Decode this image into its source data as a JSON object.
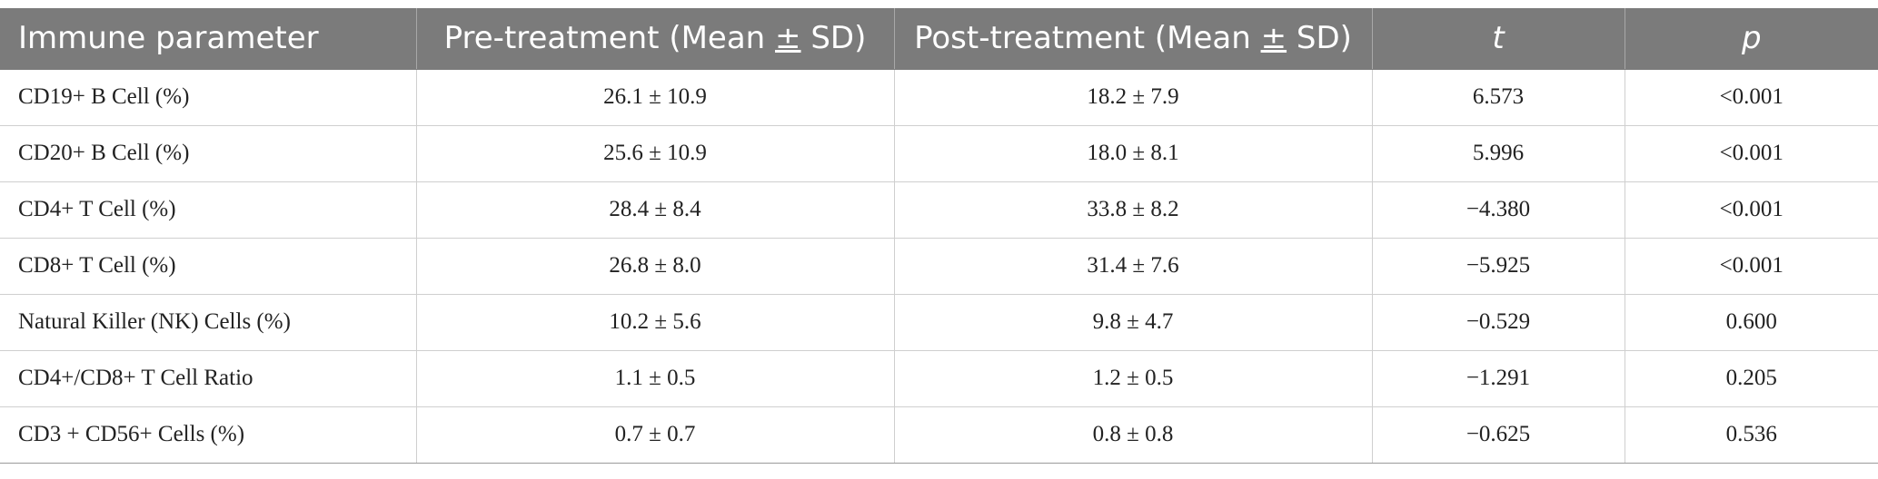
{
  "table": {
    "headers": {
      "param": "Immune parameter",
      "pre_prefix": "Pre-treatment (Mean ",
      "pre_pm": "±",
      "pre_suffix": " SD)",
      "post_prefix": "Post-treatment (Mean ",
      "post_pm": "±",
      "post_suffix": " SD)",
      "t": "t",
      "p": "p"
    },
    "rows": [
      {
        "param": "CD19+ B Cell (%)",
        "pre": "26.1 ± 10.9",
        "post": "18.2 ± 7.9",
        "t": "6.573",
        "p": "<0.001"
      },
      {
        "param": "CD20+ B Cell (%)",
        "pre": "25.6 ± 10.9",
        "post": "18.0 ± 8.1",
        "t": "5.996",
        "p": "<0.001"
      },
      {
        "param": "CD4+ T Cell (%)",
        "pre": "28.4 ± 8.4",
        "post": "33.8 ± 8.2",
        "t": "−4.380",
        "p": "<0.001"
      },
      {
        "param": "CD8+ T Cell (%)",
        "pre": "26.8 ± 8.0",
        "post": "31.4 ± 7.6",
        "t": "−5.925",
        "p": "<0.001"
      },
      {
        "param": "Natural Killer (NK) Cells (%)",
        "pre": "10.2 ± 5.6",
        "post": "9.8 ± 4.7",
        "t": "−0.529",
        "p": "0.600"
      },
      {
        "param": "CD4+/CD8+ T Cell Ratio",
        "pre": "1.1 ± 0.5",
        "post": "1.2 ± 0.5",
        "t": "−1.291",
        "p": "0.205"
      },
      {
        "param": "CD3 + CD56+ Cells (%)",
        "pre": "0.7 ± 0.7",
        "post": "0.8 ± 0.8",
        "t": "−0.625",
        "p": "0.536"
      }
    ]
  }
}
